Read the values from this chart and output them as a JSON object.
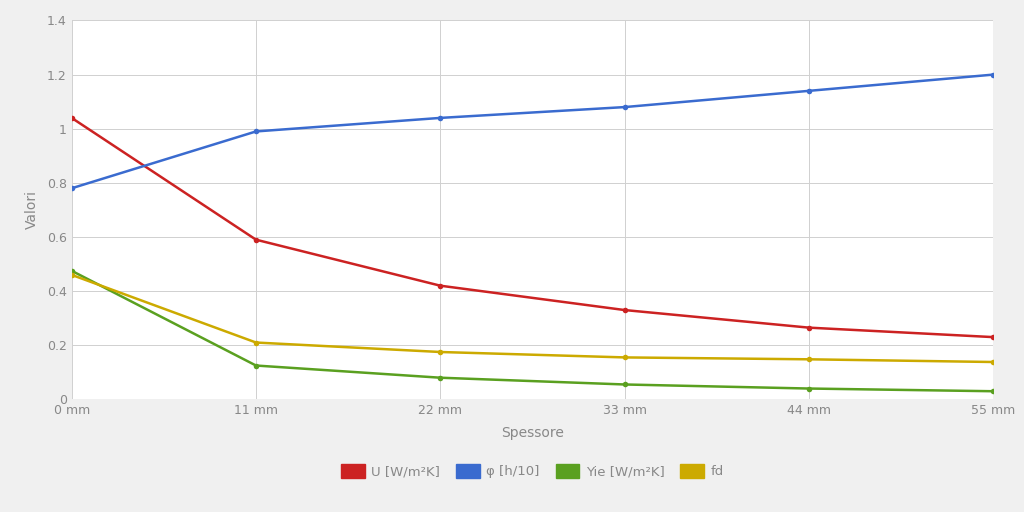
{
  "x_values": [
    0,
    11,
    22,
    33,
    44,
    55
  ],
  "x_labels": [
    "0 mm",
    "11 mm",
    "22 mm",
    "33 mm",
    "44 mm",
    "55 mm"
  ],
  "series": {
    "U": {
      "values": [
        1.04,
        0.59,
        0.42,
        0.33,
        0.265,
        0.23
      ],
      "color": "#cc2222",
      "label": "U [W/m²K]",
      "linewidth": 1.8
    },
    "phi": {
      "values": [
        0.78,
        0.99,
        1.04,
        1.08,
        1.14,
        1.2
      ],
      "color": "#3a6bcf",
      "label": "φ [h/10]",
      "linewidth": 1.8
    },
    "Yie": {
      "values": [
        0.475,
        0.125,
        0.08,
        0.055,
        0.04,
        0.03
      ],
      "color": "#5aa020",
      "label": "Yie [W/m²K]",
      "linewidth": 1.8
    },
    "fd": {
      "values": [
        0.46,
        0.21,
        0.175,
        0.155,
        0.148,
        0.138
      ],
      "color": "#ccaa00",
      "label": "fd",
      "linewidth": 1.8
    }
  },
  "xlabel": "Spessore",
  "ylabel": "Valori",
  "ylim": [
    0,
    1.4
  ],
  "yticks": [
    0,
    0.2,
    0.4,
    0.6,
    0.8,
    1.0,
    1.2,
    1.4
  ],
  "figure_bg": "#f0f0f0",
  "plot_bg": "#ffffff",
  "grid_color": "#d0d0d0",
  "tick_color": "#888888",
  "label_color": "#888888",
  "marker": "o",
  "marker_size": 4
}
